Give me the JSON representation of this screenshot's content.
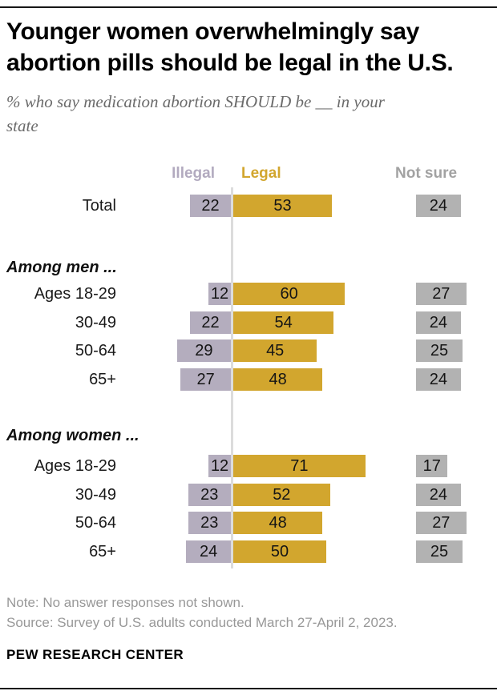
{
  "header": {
    "title_line1": "Younger women overwhelmingly say",
    "title_line2": "abortion pills should be legal in the U.S.",
    "subtitle_line1": "% who say medication abortion SHOULD be __ in your",
    "subtitle_line2": "state"
  },
  "chart_data": {
    "type": "bar",
    "orientation": "horizontal-diverging",
    "unit": "percent of U.S. adults",
    "column_headers": [
      {
        "key": "illegal",
        "label": "Illegal",
        "color": "#b2aabf"
      },
      {
        "key": "legal",
        "label": "Legal",
        "color": "#d2a62e"
      },
      {
        "key": "not_sure",
        "label": "Not sure",
        "color": "#a2a2a2"
      }
    ],
    "colors": {
      "illegal_bar": "#b4adbe",
      "legal_bar": "#d2a62e",
      "not_sure_bar": "#b2b2b2",
      "axis_line": "#dcdcdc"
    },
    "groups": [
      {
        "header": "",
        "rows": [
          {
            "label": "Total",
            "illegal": 22,
            "legal": 53,
            "not_sure": 24
          }
        ]
      },
      {
        "header": "Among men ...",
        "rows": [
          {
            "label": "Ages 18-29",
            "illegal": 12,
            "legal": 60,
            "not_sure": 27
          },
          {
            "label": "30-49",
            "illegal": 22,
            "legal": 54,
            "not_sure": 24
          },
          {
            "label": "50-64",
            "illegal": 29,
            "legal": 45,
            "not_sure": 25
          },
          {
            "label": "65+",
            "illegal": 27,
            "legal": 48,
            "not_sure": 24
          }
        ]
      },
      {
        "header": "Among women ...",
        "rows": [
          {
            "label": "Ages 18-29",
            "illegal": 12,
            "legal": 71,
            "not_sure": 17
          },
          {
            "label": "30-49",
            "illegal": 23,
            "legal": 52,
            "not_sure": 24
          },
          {
            "label": "50-64",
            "illegal": 23,
            "legal": 48,
            "not_sure": 27
          },
          {
            "label": "65+",
            "illegal": 24,
            "legal": 50,
            "not_sure": 25
          }
        ]
      }
    ]
  },
  "footer": {
    "note": "Note: No answer responses not shown.",
    "source": "Source: Survey of U.S. adults conducted March 27-April 2, 2023.",
    "brand": "PEW RESEARCH CENTER"
  }
}
